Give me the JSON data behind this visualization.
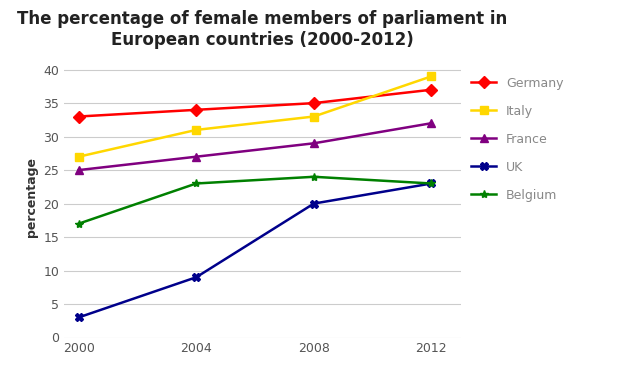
{
  "title": "The percentage of female members of parliament in\nEuropean countries (2000-2012)",
  "ylabel": "percentage",
  "years": [
    2000,
    2004,
    2008,
    2012
  ],
  "series": [
    {
      "name": "Germany",
      "values": [
        33,
        34,
        35,
        37
      ],
      "color": "#FF0000",
      "marker": "D"
    },
    {
      "name": "Italy",
      "values": [
        27,
        31,
        33,
        39
      ],
      "color": "#FFD700",
      "marker": "s"
    },
    {
      "name": "France",
      "values": [
        25,
        27,
        29,
        32
      ],
      "color": "#800080",
      "marker": "^"
    },
    {
      "name": "UK",
      "values": [
        3,
        9,
        20,
        23
      ],
      "color": "#00008B",
      "marker": "X"
    },
    {
      "name": "Belgium",
      "values": [
        17,
        23,
        24,
        23
      ],
      "color": "#008000",
      "marker": "*"
    }
  ],
  "ylim": [
    0,
    42
  ],
  "yticks": [
    0,
    5,
    10,
    15,
    20,
    25,
    30,
    35,
    40
  ],
  "xticks": [
    2000,
    2004,
    2008,
    2012
  ],
  "background_color": "#ffffff",
  "plot_bg_color": "#ffffff",
  "grid_color": "#cccccc",
  "title_fontsize": 12,
  "axis_label_fontsize": 9,
  "legend_fontsize": 9,
  "tick_fontsize": 9,
  "linewidth": 1.8,
  "markersize": 6,
  "legend_text_color": "#888888"
}
